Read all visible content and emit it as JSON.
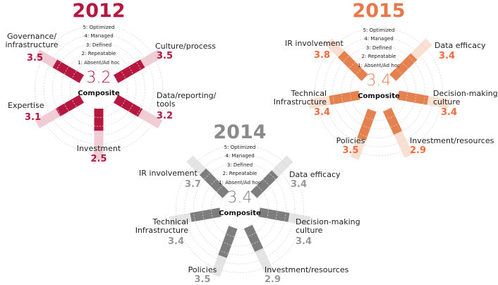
{
  "levels": [
    "1: Absent/Ad hoc",
    "2: Repeatable",
    "3: Defined",
    "4: Managed",
    "5: Optimized"
  ],
  "composite_label": "Composite",
  "chart_data": [
    {
      "type": "radial-bar",
      "title": "2012",
      "composite": "3.2",
      "color": "#b5173f",
      "pale": "#f1ccd4",
      "value_color": "#b5173f",
      "scale_max": 5,
      "categories": [
        "Governance/ infrastructure",
        "Culture/process",
        "Data/reporting/ tools",
        "Investment",
        "Expertise"
      ],
      "values": [
        3.5,
        3.5,
        3.2,
        2.5,
        3.1
      ],
      "value_labels": [
        "3.5",
        "3.5",
        "3.2",
        "2.5",
        "3.1"
      ]
    },
    {
      "type": "radial-bar",
      "title": "2015",
      "composite": "3.4",
      "color": "#e5814f",
      "pale": "#fbdfd1",
      "value_color": "#ef6a3c",
      "scale_max": 5,
      "categories": [
        "IR involvement",
        "Data efficacy",
        "Decision-making culture",
        "Investment/resources",
        "Policies",
        "Technical Infrastructure"
      ],
      "values": [
        3.8,
        3.4,
        3.4,
        2.9,
        3.5,
        3.4
      ],
      "value_labels": [
        "3.8",
        "3.4",
        "3.4",
        "2.9",
        "3.5",
        "3.4"
      ]
    },
    {
      "type": "radial-bar",
      "title": "2014",
      "composite": "3.4",
      "color": "#7d7d7d",
      "pale": "#e4e4e4",
      "value_color": "#999999",
      "scale_max": 5,
      "categories": [
        "IR involvement",
        "Data efficacy",
        "Decision-making culture",
        "Investment/resources",
        "Policies",
        "Technical Infrastructure"
      ],
      "values": [
        3.7,
        3.4,
        3.4,
        2.9,
        3.5,
        3.4
      ],
      "value_labels": [
        "3.7",
        "3.4",
        "3.4",
        "2.9",
        "3.5",
        "3.4"
      ]
    }
  ]
}
